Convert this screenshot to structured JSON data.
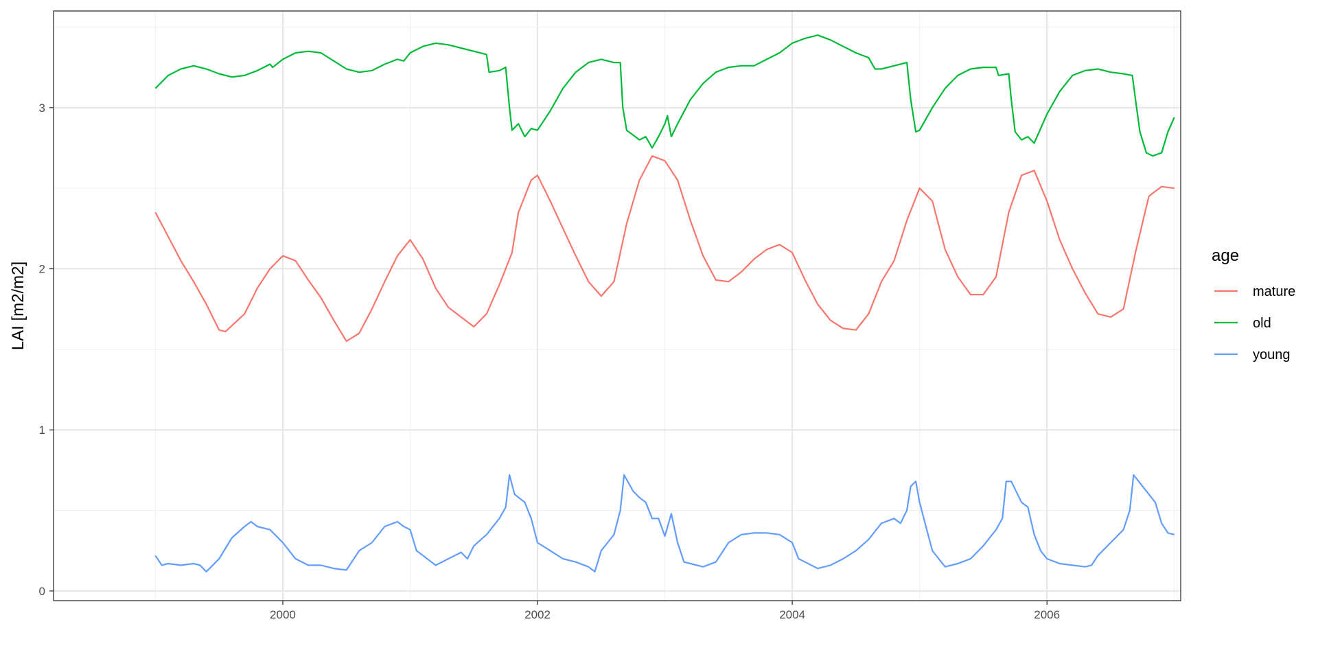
{
  "chart_data": {
    "type": "line",
    "title": "",
    "xlabel": "",
    "ylabel": "LAI [m2/m2]",
    "xlim": [
      1998.2,
      2007.05
    ],
    "ylim": [
      -0.06,
      3.6
    ],
    "x_ticks": [
      2000,
      2002,
      2004,
      2006
    ],
    "x_tick_labels": [
      "2000",
      "2002",
      "2004",
      "2006"
    ],
    "y_ticks": [
      0,
      1,
      2,
      3
    ],
    "y_tick_labels": [
      "0",
      "1",
      "2",
      "3"
    ],
    "y_minor_ticks": [
      0.5,
      1.5,
      2.5,
      3.5
    ],
    "x_minor_ticks": [
      1999,
      2001,
      2003,
      2005,
      2007
    ],
    "grid": true,
    "legend": {
      "title": "age",
      "placement": "right"
    },
    "series": [
      {
        "name": "mature",
        "color": "#F8766D",
        "points": [
          [
            1999.0,
            2.35
          ],
          [
            1999.1,
            2.2
          ],
          [
            1999.2,
            2.05
          ],
          [
            1999.3,
            1.92
          ],
          [
            1999.4,
            1.78
          ],
          [
            1999.5,
            1.62
          ],
          [
            1999.55,
            1.61
          ],
          [
            1999.7,
            1.72
          ],
          [
            1999.8,
            1.88
          ],
          [
            1999.9,
            2.0
          ],
          [
            2000.0,
            2.08
          ],
          [
            2000.1,
            2.05
          ],
          [
            2000.2,
            1.93
          ],
          [
            2000.3,
            1.82
          ],
          [
            2000.4,
            1.68
          ],
          [
            2000.5,
            1.55
          ],
          [
            2000.6,
            1.6
          ],
          [
            2000.7,
            1.75
          ],
          [
            2000.8,
            1.92
          ],
          [
            2000.9,
            2.08
          ],
          [
            2001.0,
            2.18
          ],
          [
            2001.1,
            2.06
          ],
          [
            2001.2,
            1.88
          ],
          [
            2001.3,
            1.76
          ],
          [
            2001.4,
            1.7
          ],
          [
            2001.5,
            1.64
          ],
          [
            2001.6,
            1.72
          ],
          [
            2001.7,
            1.9
          ],
          [
            2001.8,
            2.1
          ],
          [
            2001.85,
            2.35
          ],
          [
            2001.95,
            2.55
          ],
          [
            2002.0,
            2.58
          ],
          [
            2002.1,
            2.42
          ],
          [
            2002.2,
            2.25
          ],
          [
            2002.3,
            2.08
          ],
          [
            2002.4,
            1.92
          ],
          [
            2002.5,
            1.83
          ],
          [
            2002.6,
            1.92
          ],
          [
            2002.7,
            2.28
          ],
          [
            2002.8,
            2.55
          ],
          [
            2002.9,
            2.7
          ],
          [
            2003.0,
            2.67
          ],
          [
            2003.1,
            2.55
          ],
          [
            2003.2,
            2.3
          ],
          [
            2003.3,
            2.08
          ],
          [
            2003.4,
            1.93
          ],
          [
            2003.5,
            1.92
          ],
          [
            2003.6,
            1.98
          ],
          [
            2003.7,
            2.06
          ],
          [
            2003.8,
            2.12
          ],
          [
            2003.9,
            2.15
          ],
          [
            2004.0,
            2.1
          ],
          [
            2004.1,
            1.93
          ],
          [
            2004.2,
            1.78
          ],
          [
            2004.3,
            1.68
          ],
          [
            2004.4,
            1.63
          ],
          [
            2004.5,
            1.62
          ],
          [
            2004.6,
            1.72
          ],
          [
            2004.7,
            1.92
          ],
          [
            2004.8,
            2.05
          ],
          [
            2004.9,
            2.3
          ],
          [
            2005.0,
            2.5
          ],
          [
            2005.1,
            2.42
          ],
          [
            2005.2,
            2.12
          ],
          [
            2005.3,
            1.95
          ],
          [
            2005.4,
            1.84
          ],
          [
            2005.5,
            1.84
          ],
          [
            2005.6,
            1.95
          ],
          [
            2005.7,
            2.35
          ],
          [
            2005.8,
            2.58
          ],
          [
            2005.9,
            2.61
          ],
          [
            2006.0,
            2.42
          ],
          [
            2006.1,
            2.18
          ],
          [
            2006.2,
            2.0
          ],
          [
            2006.3,
            1.85
          ],
          [
            2006.4,
            1.72
          ],
          [
            2006.5,
            1.7
          ],
          [
            2006.6,
            1.75
          ],
          [
            2006.7,
            2.12
          ],
          [
            2006.8,
            2.45
          ],
          [
            2006.9,
            2.51
          ],
          [
            2007.0,
            2.5
          ]
        ]
      },
      {
        "name": "old",
        "color": "#00BA38",
        "points": [
          [
            1999.0,
            3.12
          ],
          [
            1999.1,
            3.2
          ],
          [
            1999.2,
            3.24
          ],
          [
            1999.3,
            3.26
          ],
          [
            1999.4,
            3.24
          ],
          [
            1999.5,
            3.21
          ],
          [
            1999.6,
            3.19
          ],
          [
            1999.7,
            3.2
          ],
          [
            1999.8,
            3.23
          ],
          [
            1999.9,
            3.27
          ],
          [
            1999.92,
            3.25
          ],
          [
            2000.0,
            3.3
          ],
          [
            2000.1,
            3.34
          ],
          [
            2000.2,
            3.35
          ],
          [
            2000.3,
            3.34
          ],
          [
            2000.4,
            3.29
          ],
          [
            2000.5,
            3.24
          ],
          [
            2000.6,
            3.22
          ],
          [
            2000.7,
            3.23
          ],
          [
            2000.8,
            3.27
          ],
          [
            2000.9,
            3.3
          ],
          [
            2000.95,
            3.29
          ],
          [
            2001.0,
            3.34
          ],
          [
            2001.1,
            3.38
          ],
          [
            2001.2,
            3.4
          ],
          [
            2001.3,
            3.39
          ],
          [
            2001.4,
            3.37
          ],
          [
            2001.5,
            3.35
          ],
          [
            2001.6,
            3.33
          ],
          [
            2001.62,
            3.22
          ],
          [
            2001.7,
            3.23
          ],
          [
            2001.75,
            3.25
          ],
          [
            2001.78,
            3.0
          ],
          [
            2001.8,
            2.86
          ],
          [
            2001.85,
            2.9
          ],
          [
            2001.9,
            2.82
          ],
          [
            2001.95,
            2.87
          ],
          [
            2002.0,
            2.86
          ],
          [
            2002.1,
            2.98
          ],
          [
            2002.2,
            3.12
          ],
          [
            2002.3,
            3.22
          ],
          [
            2002.4,
            3.28
          ],
          [
            2002.5,
            3.3
          ],
          [
            2002.6,
            3.28
          ],
          [
            2002.65,
            3.28
          ],
          [
            2002.67,
            3.0
          ],
          [
            2002.7,
            2.86
          ],
          [
            2002.8,
            2.8
          ],
          [
            2002.85,
            2.82
          ],
          [
            2002.9,
            2.75
          ],
          [
            2002.95,
            2.82
          ],
          [
            2003.0,
            2.9
          ],
          [
            2003.02,
            2.95
          ],
          [
            2003.05,
            2.82
          ],
          [
            2003.1,
            2.9
          ],
          [
            2003.2,
            3.05
          ],
          [
            2003.3,
            3.15
          ],
          [
            2003.4,
            3.22
          ],
          [
            2003.5,
            3.25
          ],
          [
            2003.6,
            3.26
          ],
          [
            2003.7,
            3.26
          ],
          [
            2003.8,
            3.3
          ],
          [
            2003.9,
            3.34
          ],
          [
            2004.0,
            3.4
          ],
          [
            2004.1,
            3.43
          ],
          [
            2004.2,
            3.45
          ],
          [
            2004.3,
            3.42
          ],
          [
            2004.4,
            3.38
          ],
          [
            2004.5,
            3.34
          ],
          [
            2004.6,
            3.31
          ],
          [
            2004.65,
            3.24
          ],
          [
            2004.7,
            3.24
          ],
          [
            2004.8,
            3.26
          ],
          [
            2004.9,
            3.28
          ],
          [
            2004.93,
            3.05
          ],
          [
            2004.97,
            2.85
          ],
          [
            2005.0,
            2.86
          ],
          [
            2005.1,
            3.0
          ],
          [
            2005.2,
            3.12
          ],
          [
            2005.3,
            3.2
          ],
          [
            2005.4,
            3.24
          ],
          [
            2005.5,
            3.25
          ],
          [
            2005.6,
            3.25
          ],
          [
            2005.62,
            3.2
          ],
          [
            2005.7,
            3.21
          ],
          [
            2005.72,
            3.05
          ],
          [
            2005.75,
            2.85
          ],
          [
            2005.8,
            2.8
          ],
          [
            2005.85,
            2.82
          ],
          [
            2005.9,
            2.78
          ],
          [
            2006.0,
            2.96
          ],
          [
            2006.1,
            3.1
          ],
          [
            2006.2,
            3.2
          ],
          [
            2006.3,
            3.23
          ],
          [
            2006.4,
            3.24
          ],
          [
            2006.5,
            3.22
          ],
          [
            2006.6,
            3.21
          ],
          [
            2006.67,
            3.2
          ],
          [
            2006.7,
            3.02
          ],
          [
            2006.73,
            2.85
          ],
          [
            2006.78,
            2.72
          ],
          [
            2006.83,
            2.7
          ],
          [
            2006.9,
            2.72
          ],
          [
            2006.95,
            2.85
          ],
          [
            2007.0,
            2.94
          ]
        ]
      },
      {
        "name": "young",
        "color": "#619CFF",
        "points": [
          [
            1999.0,
            0.22
          ],
          [
            1999.05,
            0.16
          ],
          [
            1999.1,
            0.17
          ],
          [
            1999.2,
            0.16
          ],
          [
            1999.3,
            0.17
          ],
          [
            1999.35,
            0.16
          ],
          [
            1999.4,
            0.12
          ],
          [
            1999.5,
            0.2
          ],
          [
            1999.6,
            0.33
          ],
          [
            1999.7,
            0.4
          ],
          [
            1999.75,
            0.43
          ],
          [
            1999.8,
            0.4
          ],
          [
            1999.9,
            0.38
          ],
          [
            2000.0,
            0.3
          ],
          [
            2000.1,
            0.2
          ],
          [
            2000.2,
            0.16
          ],
          [
            2000.3,
            0.16
          ],
          [
            2000.4,
            0.14
          ],
          [
            2000.5,
            0.13
          ],
          [
            2000.6,
            0.25
          ],
          [
            2000.7,
            0.3
          ],
          [
            2000.8,
            0.4
          ],
          [
            2000.9,
            0.43
          ],
          [
            2000.95,
            0.4
          ],
          [
            2001.0,
            0.38
          ],
          [
            2001.05,
            0.25
          ],
          [
            2001.1,
            0.22
          ],
          [
            2001.2,
            0.16
          ],
          [
            2001.3,
            0.2
          ],
          [
            2001.4,
            0.24
          ],
          [
            2001.45,
            0.2
          ],
          [
            2001.5,
            0.28
          ],
          [
            2001.6,
            0.35
          ],
          [
            2001.7,
            0.45
          ],
          [
            2001.75,
            0.52
          ],
          [
            2001.78,
            0.72
          ],
          [
            2001.82,
            0.6
          ],
          [
            2001.9,
            0.55
          ],
          [
            2001.95,
            0.45
          ],
          [
            2002.0,
            0.3
          ],
          [
            2002.1,
            0.25
          ],
          [
            2002.2,
            0.2
          ],
          [
            2002.3,
            0.18
          ],
          [
            2002.4,
            0.15
          ],
          [
            2002.45,
            0.12
          ],
          [
            2002.5,
            0.25
          ],
          [
            2002.6,
            0.35
          ],
          [
            2002.65,
            0.5
          ],
          [
            2002.68,
            0.72
          ],
          [
            2002.75,
            0.62
          ],
          [
            2002.8,
            0.58
          ],
          [
            2002.85,
            0.55
          ],
          [
            2002.9,
            0.45
          ],
          [
            2002.95,
            0.45
          ],
          [
            2003.0,
            0.34
          ],
          [
            2003.05,
            0.48
          ],
          [
            2003.1,
            0.3
          ],
          [
            2003.15,
            0.18
          ],
          [
            2003.2,
            0.17
          ],
          [
            2003.3,
            0.15
          ],
          [
            2003.4,
            0.18
          ],
          [
            2003.5,
            0.3
          ],
          [
            2003.6,
            0.35
          ],
          [
            2003.7,
            0.36
          ],
          [
            2003.8,
            0.36
          ],
          [
            2003.9,
            0.35
          ],
          [
            2004.0,
            0.3
          ],
          [
            2004.05,
            0.2
          ],
          [
            2004.1,
            0.18
          ],
          [
            2004.2,
            0.14
          ],
          [
            2004.3,
            0.16
          ],
          [
            2004.4,
            0.2
          ],
          [
            2004.5,
            0.25
          ],
          [
            2004.6,
            0.32
          ],
          [
            2004.7,
            0.42
          ],
          [
            2004.8,
            0.45
          ],
          [
            2004.85,
            0.42
          ],
          [
            2004.9,
            0.5
          ],
          [
            2004.93,
            0.65
          ],
          [
            2004.97,
            0.68
          ],
          [
            2005.0,
            0.55
          ],
          [
            2005.05,
            0.4
          ],
          [
            2005.1,
            0.25
          ],
          [
            2005.2,
            0.15
          ],
          [
            2005.3,
            0.17
          ],
          [
            2005.4,
            0.2
          ],
          [
            2005.5,
            0.28
          ],
          [
            2005.6,
            0.38
          ],
          [
            2005.65,
            0.45
          ],
          [
            2005.68,
            0.68
          ],
          [
            2005.72,
            0.68
          ],
          [
            2005.8,
            0.55
          ],
          [
            2005.85,
            0.52
          ],
          [
            2005.9,
            0.35
          ],
          [
            2005.95,
            0.25
          ],
          [
            2006.0,
            0.2
          ],
          [
            2006.1,
            0.17
          ],
          [
            2006.2,
            0.16
          ],
          [
            2006.3,
            0.15
          ],
          [
            2006.35,
            0.16
          ],
          [
            2006.4,
            0.22
          ],
          [
            2006.5,
            0.3
          ],
          [
            2006.6,
            0.38
          ],
          [
            2006.65,
            0.5
          ],
          [
            2006.68,
            0.72
          ],
          [
            2006.72,
            0.68
          ],
          [
            2006.8,
            0.6
          ],
          [
            2006.85,
            0.55
          ],
          [
            2006.9,
            0.42
          ],
          [
            2006.95,
            0.36
          ],
          [
            2007.0,
            0.35
          ]
        ]
      }
    ]
  }
}
